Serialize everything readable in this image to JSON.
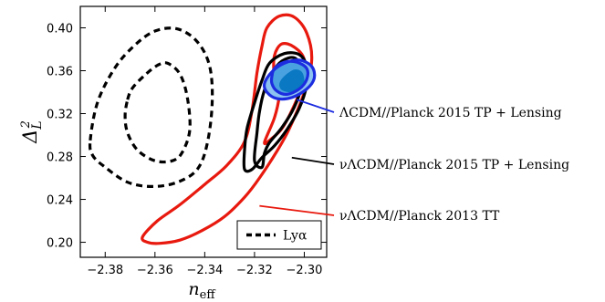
{
  "chart_data": {
    "type": "contour",
    "xlabel_base": "n",
    "xlabel_sub": "eff",
    "ylabel_base": "Δ",
    "ylabel_sup": "2",
    "ylabel_sub": "L",
    "xlim": [
      -2.39,
      -2.291
    ],
    "ylim": [
      0.186,
      0.42
    ],
    "xticks": [
      -2.38,
      -2.36,
      -2.34,
      -2.32,
      -2.3
    ],
    "xtick_labels": [
      "−2.38",
      "−2.36",
      "−2.34",
      "−2.32",
      "−2.30"
    ],
    "yticks": [
      0.2,
      0.24,
      0.28,
      0.32,
      0.36,
      0.4
    ],
    "ytick_labels": [
      "0.20",
      "0.24",
      "0.28",
      "0.32",
      "0.36",
      "0.40"
    ],
    "legend": {
      "location": "lower-right",
      "entries": [
        {
          "label": "Lyα",
          "style": "dashed",
          "color": "#000000"
        }
      ]
    },
    "series": [
      {
        "name": "Lyα",
        "color": "#000000",
        "style": "dashed",
        "contours": [
          [
            [
              -2.371,
              0.333
            ],
            [
              -2.369,
              0.344
            ],
            [
              -2.364,
              0.356
            ],
            [
              -2.359,
              0.365
            ],
            [
              -2.355,
              0.367
            ],
            [
              -2.35,
              0.357
            ],
            [
              -2.347,
              0.335
            ],
            [
              -2.346,
              0.305
            ],
            [
              -2.349,
              0.284
            ],
            [
              -2.353,
              0.276
            ],
            [
              -2.36,
              0.276
            ],
            [
              -2.367,
              0.286
            ],
            [
              -2.371,
              0.302
            ],
            [
              -2.372,
              0.318
            ],
            [
              -2.371,
              0.333
            ]
          ],
          [
            [
              -2.386,
              0.295
            ],
            [
              -2.383,
              0.331
            ],
            [
              -2.376,
              0.363
            ],
            [
              -2.368,
              0.384
            ],
            [
              -2.36,
              0.397
            ],
            [
              -2.351,
              0.399
            ],
            [
              -2.343,
              0.387
            ],
            [
              -2.338,
              0.364
            ],
            [
              -2.337,
              0.33
            ],
            [
              -2.339,
              0.292
            ],
            [
              -2.343,
              0.268
            ],
            [
              -2.351,
              0.256
            ],
            [
              -2.361,
              0.252
            ],
            [
              -2.371,
              0.256
            ],
            [
              -2.38,
              0.27
            ],
            [
              -2.385,
              0.281
            ],
            [
              -2.386,
              0.295
            ]
          ]
        ]
      },
      {
        "name": "νΛCDM//Planck 2013 TT",
        "color": "#e8190e",
        "style": "solid",
        "contours": [
          [
            [
              -2.316,
              0.293
            ],
            [
              -2.312,
              0.316
            ],
            [
              -2.31,
              0.337
            ],
            [
              -2.31,
              0.351
            ],
            [
              -2.312,
              0.355
            ],
            [
              -2.312,
              0.374
            ],
            [
              -2.309,
              0.385
            ],
            [
              -2.304,
              0.382
            ],
            [
              -2.3,
              0.37
            ],
            [
              -2.301,
              0.346
            ],
            [
              -2.305,
              0.323
            ],
            [
              -2.309,
              0.306
            ],
            [
              -2.313,
              0.297
            ],
            [
              -2.316,
              0.293
            ]
          ],
          [
            [
              -2.365,
              0.205
            ],
            [
              -2.359,
              0.22
            ],
            [
              -2.35,
              0.235
            ],
            [
              -2.34,
              0.254
            ],
            [
              -2.331,
              0.272
            ],
            [
              -2.324,
              0.294
            ],
            [
              -2.321,
              0.323
            ],
            [
              -2.319,
              0.358
            ],
            [
              -2.317,
              0.383
            ],
            [
              -2.315,
              0.4
            ],
            [
              -2.31,
              0.411
            ],
            [
              -2.304,
              0.41
            ],
            [
              -2.299,
              0.395
            ],
            [
              -2.297,
              0.37
            ],
            [
              -2.3,
              0.34
            ],
            [
              -2.306,
              0.306
            ],
            [
              -2.311,
              0.285
            ],
            [
              -2.318,
              0.26
            ],
            [
              -2.324,
              0.242
            ],
            [
              -2.332,
              0.224
            ],
            [
              -2.341,
              0.211
            ],
            [
              -2.35,
              0.202
            ],
            [
              -2.358,
              0.199
            ],
            [
              -2.363,
              0.2
            ],
            [
              -2.365,
              0.205
            ]
          ]
        ]
      },
      {
        "name": "νΛCDM//Planck 2015 TP + Lensing",
        "color": "#000000",
        "style": "solid",
        "contours": [
          [
            [
              -2.32,
              0.276
            ],
            [
              -2.319,
              0.302
            ],
            [
              -2.318,
              0.322
            ],
            [
              -2.316,
              0.342
            ],
            [
              -2.313,
              0.358
            ],
            [
              -2.309,
              0.369
            ],
            [
              -2.304,
              0.372
            ],
            [
              -2.301,
              0.362
            ],
            [
              -2.301,
              0.347
            ],
            [
              -2.304,
              0.326
            ],
            [
              -2.309,
              0.307
            ],
            [
              -2.314,
              0.293
            ],
            [
              -2.316,
              0.283
            ],
            [
              -2.317,
              0.27
            ],
            [
              -2.32,
              0.276
            ]
          ],
          [
            [
              -2.324,
              0.268
            ],
            [
              -2.324,
              0.286
            ],
            [
              -2.323,
              0.306
            ],
            [
              -2.32,
              0.33
            ],
            [
              -2.317,
              0.351
            ],
            [
              -2.314,
              0.367
            ],
            [
              -2.308,
              0.376
            ],
            [
              -2.302,
              0.375
            ],
            [
              -2.299,
              0.364
            ],
            [
              -2.299,
              0.347
            ],
            [
              -2.302,
              0.325
            ],
            [
              -2.307,
              0.305
            ],
            [
              -2.312,
              0.29
            ],
            [
              -2.317,
              0.279
            ],
            [
              -2.321,
              0.268
            ],
            [
              -2.324,
              0.268
            ]
          ]
        ]
      },
      {
        "name": "ΛCDM//Planck 2015 TP + Lensing",
        "color": "#1c2de0",
        "style": "solid",
        "fill": "#0a78c2",
        "contours": [
          [
            [
              -2.313,
              0.355
            ],
            [
              -2.312,
              0.362
            ],
            [
              -2.308,
              0.368
            ],
            [
              -2.303,
              0.368
            ],
            [
              -2.299,
              0.362
            ],
            [
              -2.299,
              0.352
            ],
            [
              -2.302,
              0.343
            ],
            [
              -2.307,
              0.338
            ],
            [
              -2.311,
              0.341
            ],
            [
              -2.313,
              0.348
            ],
            [
              -2.313,
              0.355
            ]
          ],
          [
            [
              -2.316,
              0.348
            ],
            [
              -2.313,
              0.359
            ],
            [
              -2.308,
              0.367
            ],
            [
              -2.302,
              0.37
            ],
            [
              -2.297,
              0.364
            ],
            [
              -2.296,
              0.353
            ],
            [
              -2.299,
              0.343
            ],
            [
              -2.305,
              0.335
            ],
            [
              -2.311,
              0.334
            ],
            [
              -2.315,
              0.34
            ],
            [
              -2.316,
              0.348
            ]
          ]
        ],
        "filled_core": [
          [
            -2.31,
            0.348
          ],
          [
            -2.308,
            0.355
          ],
          [
            -2.304,
            0.361
          ],
          [
            -2.301,
            0.359
          ],
          [
            -2.3,
            0.351
          ],
          [
            -2.301,
            0.344
          ],
          [
            -2.305,
            0.34
          ],
          [
            -2.309,
            0.342
          ],
          [
            -2.31,
            0.348
          ]
        ]
      }
    ],
    "annotations": [
      {
        "text": "ΛCDM//Planck 2015 TP + Lensing",
        "color": "#1c2de0",
        "point": [
          -2.303,
          0.333
        ]
      },
      {
        "text": "νΛCDM//Planck 2015 TP + Lensing",
        "color": "#000000",
        "point": [
          -2.305,
          0.279
        ]
      },
      {
        "text": "νΛCDM//Planck 2013 TT",
        "color": "#e8190e",
        "point": [
          -2.318,
          0.234
        ]
      }
    ]
  }
}
